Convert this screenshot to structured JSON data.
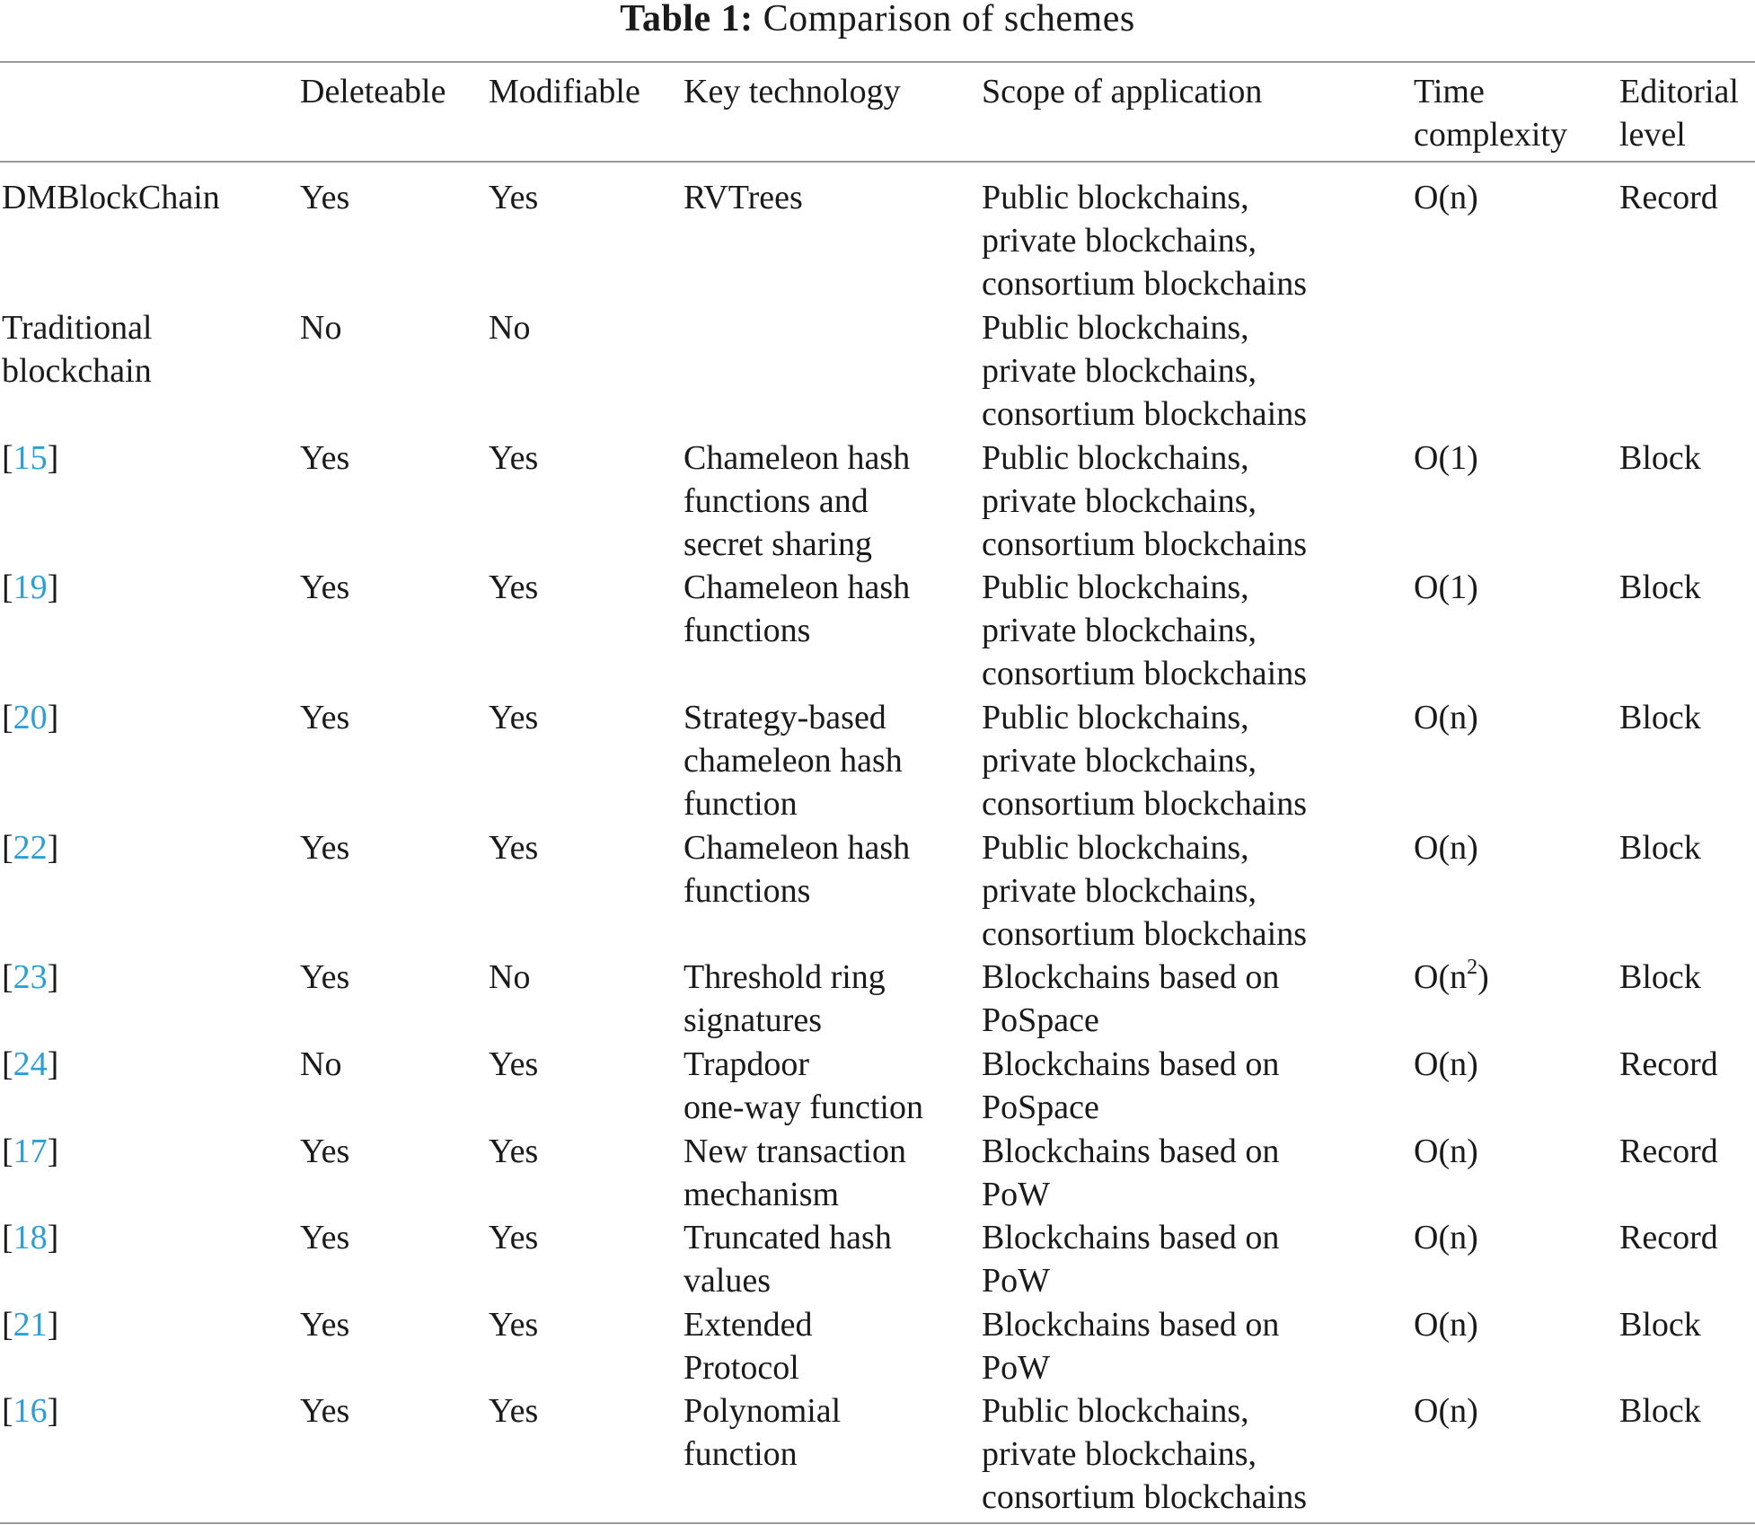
{
  "caption": {
    "label": "Table 1:",
    "text": "Comparison of schemes"
  },
  "header": {
    "c1": [
      "Deleteable"
    ],
    "c2": [
      "Modifiable"
    ],
    "c3": [
      "Key technology"
    ],
    "c4": [
      "Scope of application"
    ],
    "c5": [
      "Time",
      "complexity"
    ],
    "c6": [
      "Editorial",
      "level"
    ]
  },
  "rows": [
    {
      "c0": [
        "DMBlockChain"
      ],
      "c1": "Yes",
      "c2": "Yes",
      "c3": [
        "RVTrees"
      ],
      "c4": [
        "Public blockchains,",
        "private blockchains,",
        "consortium blockchains"
      ],
      "c5": {
        "text": "O(n)"
      },
      "c6": "Record"
    },
    {
      "c0": [
        "Traditional",
        "blockchain"
      ],
      "c1": "No",
      "c2": "No",
      "c3": [],
      "c4": [
        "Public blockchains,",
        "private blockchains,",
        "consortium blockchains"
      ],
      "c5": {
        "text": ""
      },
      "c6": ""
    },
    {
      "ref": "15",
      "c1": "Yes",
      "c2": "Yes",
      "c3": [
        "Chameleon hash",
        "functions and",
        "secret sharing"
      ],
      "c4": [
        "Public blockchains,",
        "private blockchains,",
        "consortium blockchains"
      ],
      "c5": {
        "text": "O(1)"
      },
      "c6": "Block"
    },
    {
      "ref": "19",
      "c1": "Yes",
      "c2": "Yes",
      "c3": [
        "Chameleon hash",
        "functions"
      ],
      "c4": [
        "Public blockchains,",
        "private blockchains,",
        "consortium blockchains"
      ],
      "c5": {
        "text": "O(1)"
      },
      "c6": "Block"
    },
    {
      "ref": "20",
      "c1": "Yes",
      "c2": "Yes",
      "c3": [
        "Strategy-based",
        "chameleon hash",
        "function"
      ],
      "c4": [
        "Public blockchains,",
        "private blockchains,",
        "consortium blockchains"
      ],
      "c5": {
        "text": "O(n)"
      },
      "c6": "Block"
    },
    {
      "ref": "22",
      "c1": "Yes",
      "c2": "Yes",
      "c3": [
        "Chameleon hash",
        "functions"
      ],
      "c4": [
        "Public blockchains,",
        "private blockchains,",
        "consortium blockchains"
      ],
      "c5": {
        "text": "O(n)"
      },
      "c6": "Block"
    },
    {
      "ref": "23",
      "c1": "Yes",
      "c2": "No",
      "c3": [
        "Threshold ring",
        "signatures"
      ],
      "c4": [
        "Blockchains based on",
        "PoSpace"
      ],
      "c5": {
        "pre": "O(n",
        "sup": "2",
        "post": ")"
      },
      "c6": "Block"
    },
    {
      "ref": "24",
      "c1": "No",
      "c2": "Yes",
      "c3": [
        "Trapdoor",
        "one-way function"
      ],
      "c4": [
        "Blockchains based on",
        "PoSpace"
      ],
      "c5": {
        "text": "O(n)"
      },
      "c6": "Record"
    },
    {
      "ref": "17",
      "c1": "Yes",
      "c2": "Yes",
      "c3": [
        "New transaction",
        "mechanism"
      ],
      "c4": [
        "Blockchains based on",
        "PoW"
      ],
      "c5": {
        "text": "O(n)"
      },
      "c6": "Record"
    },
    {
      "ref": "18",
      "c1": "Yes",
      "c2": "Yes",
      "c3": [
        "Truncated hash",
        "values"
      ],
      "c4": [
        "Blockchains based on",
        "PoW"
      ],
      "c5": {
        "text": "O(n)"
      },
      "c6": "Record"
    },
    {
      "ref": "21",
      "c1": "Yes",
      "c2": "Yes",
      "c3": [
        "Extended",
        "Protocol"
      ],
      "c4": [
        "Blockchains based on",
        "PoW"
      ],
      "c5": {
        "text": "O(n)"
      },
      "c6": "Block"
    },
    {
      "ref": "16",
      "c1": "Yes",
      "c2": "Yes",
      "c3": [
        "Polynomial",
        "function"
      ],
      "c4": [
        "Public blockchains,",
        "private blockchains,",
        "consortium blockchains"
      ],
      "c5": {
        "text": "O(n)"
      },
      "c6": "Block"
    }
  ],
  "colors": {
    "text": "#1a1a1a",
    "reference_link": "#2b9fd6",
    "rule": "#999999"
  }
}
